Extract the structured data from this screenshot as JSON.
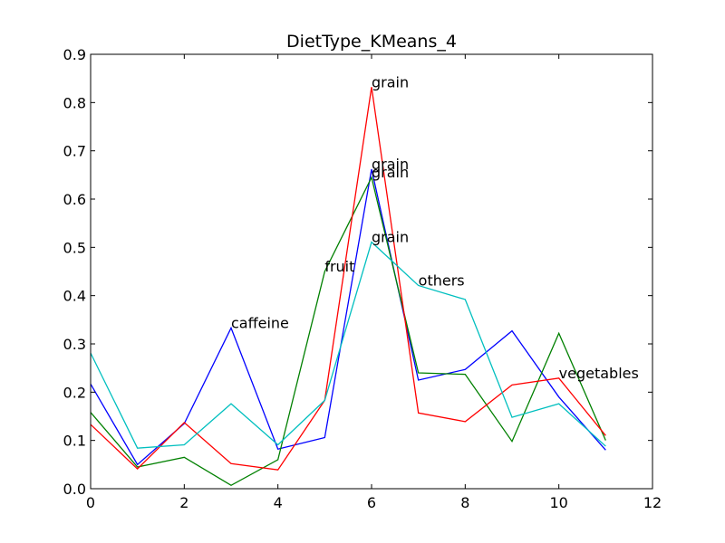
{
  "chart_data": {
    "type": "line",
    "title": "DietType_KMeans_4",
    "xlabel": "",
    "ylabel": "",
    "xlim": [
      0,
      12
    ],
    "ylim": [
      0,
      0.9
    ],
    "xticks": [
      0,
      2,
      4,
      6,
      8,
      10,
      12
    ],
    "yticks": [
      0.0,
      0.1,
      0.2,
      0.3,
      0.4,
      0.5,
      0.6,
      0.7,
      0.8,
      0.9
    ],
    "xtick_labels": [
      "0",
      "2",
      "4",
      "6",
      "8",
      "10",
      "12"
    ],
    "ytick_labels": [
      "0.0",
      "0.1",
      "0.2",
      "0.3",
      "0.4",
      "0.5",
      "0.6",
      "0.7",
      "0.8",
      "0.9"
    ],
    "grid": false,
    "legend": "none",
    "x": [
      0,
      1,
      2,
      3,
      4,
      5,
      6,
      7,
      8,
      9,
      10,
      11
    ],
    "series": [
      {
        "color": "#0000ff",
        "values": [
          0.217,
          0.05,
          0.135,
          0.333,
          0.082,
          0.106,
          0.662,
          0.225,
          0.247,
          0.327,
          0.19,
          0.08
        ]
      },
      {
        "color": "#008000",
        "values": [
          0.158,
          0.045,
          0.065,
          0.007,
          0.06,
          0.45,
          0.645,
          0.24,
          0.237,
          0.098,
          0.322,
          0.1
        ]
      },
      {
        "color": "#ff0000",
        "values": [
          0.133,
          0.041,
          0.137,
          0.052,
          0.039,
          0.183,
          0.832,
          0.157,
          0.139,
          0.215,
          0.229,
          0.11
        ]
      },
      {
        "color": "#00bfbf",
        "values": [
          0.281,
          0.084,
          0.091,
          0.176,
          0.091,
          0.183,
          0.511,
          0.421,
          0.392,
          0.148,
          0.176,
          0.088
        ]
      }
    ],
    "annotations": [
      {
        "text": "caffeine",
        "x": 3,
        "y": 0.333
      },
      {
        "text": "fruit",
        "x": 5,
        "y": 0.45
      },
      {
        "text": "grain",
        "x": 6,
        "y": 0.832
      },
      {
        "text": "grain",
        "x": 6,
        "y": 0.662
      },
      {
        "text": "grain",
        "x": 6,
        "y": 0.645
      },
      {
        "text": "grain",
        "x": 6,
        "y": 0.511
      },
      {
        "text": "others",
        "x": 7,
        "y": 0.421
      },
      {
        "text": "vegetables",
        "x": 10,
        "y": 0.229
      }
    ]
  }
}
